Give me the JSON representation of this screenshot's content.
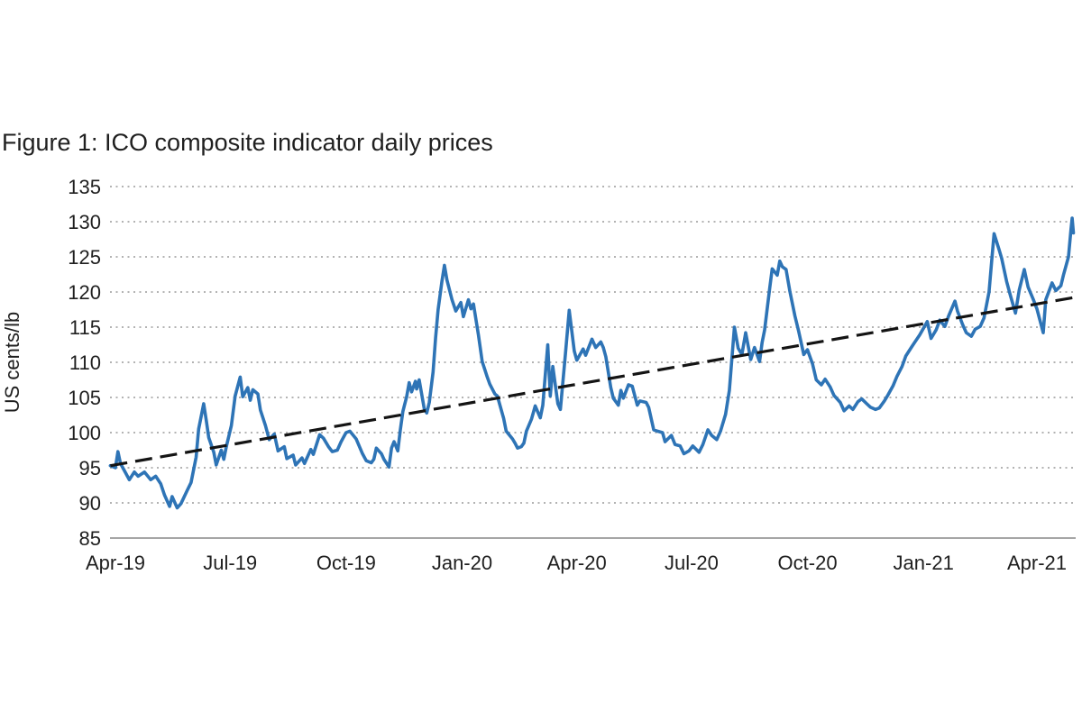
{
  "figure": {
    "title": "Figure 1: ICO composite indicator daily prices"
  },
  "chart_data": {
    "type": "line",
    "title": "Figure 1: ICO composite indicator daily prices",
    "xlabel": "",
    "ylabel": "US cents/lb",
    "ylim": [
      85,
      135
    ],
    "y_ticks": [
      85,
      90,
      95,
      100,
      105,
      110,
      115,
      120,
      125,
      130,
      135
    ],
    "x_ticks": [
      {
        "label": "Apr-19",
        "date": "2019-04-01"
      },
      {
        "label": "Jul-19",
        "date": "2019-07-01"
      },
      {
        "label": "Oct-19",
        "date": "2019-10-01"
      },
      {
        "label": "Jan-20",
        "date": "2020-01-01"
      },
      {
        "label": "Apr-20",
        "date": "2020-04-01"
      },
      {
        "label": "Jul-20",
        "date": "2020-07-01"
      },
      {
        "label": "Oct-20",
        "date": "2020-10-01"
      },
      {
        "label": "Jan-21",
        "date": "2021-01-01"
      },
      {
        "label": "Apr-21",
        "date": "2021-04-01"
      }
    ],
    "x_range": [
      "2019-03-28",
      "2021-04-30"
    ],
    "grid": "dotted-horizontal",
    "legend": "none",
    "colors": {
      "price_line": "#2E74B6",
      "trend_line": "#141414",
      "gridline": "#b3b3b3",
      "axis_line": "#a6a6a6",
      "text": "#1f1f1f"
    },
    "series": [
      {
        "name": "ICO composite indicator daily price",
        "style": "solid",
        "points": [
          [
            "2019-03-28",
            95.3
          ],
          [
            "2019-04-01",
            95.0
          ],
          [
            "2019-04-03",
            97.3
          ],
          [
            "2019-04-05",
            95.6
          ],
          [
            "2019-04-09",
            94.3
          ],
          [
            "2019-04-12",
            93.3
          ],
          [
            "2019-04-16",
            94.4
          ],
          [
            "2019-04-19",
            93.8
          ],
          [
            "2019-04-24",
            94.4
          ],
          [
            "2019-04-29",
            93.3
          ],
          [
            "2019-05-03",
            93.8
          ],
          [
            "2019-05-07",
            92.7
          ],
          [
            "2019-05-10",
            91.1
          ],
          [
            "2019-05-14",
            89.5
          ],
          [
            "2019-05-16",
            90.9
          ],
          [
            "2019-05-20",
            89.3
          ],
          [
            "2019-05-23",
            89.9
          ],
          [
            "2019-05-28",
            91.8
          ],
          [
            "2019-05-31",
            92.9
          ],
          [
            "2019-06-04",
            96.5
          ],
          [
            "2019-06-06",
            100.5
          ],
          [
            "2019-06-10",
            104.1
          ],
          [
            "2019-06-12",
            101.8
          ],
          [
            "2019-06-14",
            99.3
          ],
          [
            "2019-06-18",
            97.2
          ],
          [
            "2019-06-20",
            95.4
          ],
          [
            "2019-06-24",
            97.5
          ],
          [
            "2019-06-26",
            96.2
          ],
          [
            "2019-06-28",
            98.0
          ],
          [
            "2019-07-02",
            101.0
          ],
          [
            "2019-07-05",
            105.2
          ],
          [
            "2019-07-09",
            107.9
          ],
          [
            "2019-07-11",
            105.1
          ],
          [
            "2019-07-15",
            106.4
          ],
          [
            "2019-07-17",
            104.6
          ],
          [
            "2019-07-19",
            106.1
          ],
          [
            "2019-07-23",
            105.5
          ],
          [
            "2019-07-25",
            103.2
          ],
          [
            "2019-07-29",
            101.0
          ],
          [
            "2019-08-01",
            99.0
          ],
          [
            "2019-08-05",
            99.8
          ],
          [
            "2019-08-08",
            97.4
          ],
          [
            "2019-08-13",
            98.0
          ],
          [
            "2019-08-15",
            96.3
          ],
          [
            "2019-08-20",
            96.8
          ],
          [
            "2019-08-22",
            95.4
          ],
          [
            "2019-08-27",
            96.4
          ],
          [
            "2019-08-29",
            95.6
          ],
          [
            "2019-09-03",
            97.6
          ],
          [
            "2019-09-05",
            96.9
          ],
          [
            "2019-09-10",
            99.7
          ],
          [
            "2019-09-13",
            99.2
          ],
          [
            "2019-09-17",
            98.0
          ],
          [
            "2019-09-20",
            97.3
          ],
          [
            "2019-09-24",
            97.5
          ],
          [
            "2019-09-27",
            98.7
          ],
          [
            "2019-10-01",
            100.0
          ],
          [
            "2019-10-04",
            100.2
          ],
          [
            "2019-10-09",
            99.1
          ],
          [
            "2019-10-14",
            97.0
          ],
          [
            "2019-10-17",
            96.0
          ],
          [
            "2019-10-21",
            95.7
          ],
          [
            "2019-10-23",
            96.2
          ],
          [
            "2019-10-25",
            97.8
          ],
          [
            "2019-10-29",
            97.0
          ],
          [
            "2019-10-31",
            96.2
          ],
          [
            "2019-11-04",
            95.1
          ],
          [
            "2019-11-06",
            97.8
          ],
          [
            "2019-11-08",
            98.7
          ],
          [
            "2019-11-11",
            97.4
          ],
          [
            "2019-11-13",
            100.4
          ],
          [
            "2019-11-15",
            103.0
          ],
          [
            "2019-11-18",
            105.1
          ],
          [
            "2019-11-20",
            107.1
          ],
          [
            "2019-11-22",
            105.8
          ],
          [
            "2019-11-25",
            107.3
          ],
          [
            "2019-11-26",
            106.2
          ],
          [
            "2019-11-28",
            107.5
          ],
          [
            "2019-12-02",
            103.4
          ],
          [
            "2019-12-04",
            102.8
          ],
          [
            "2019-12-06",
            104.3
          ],
          [
            "2019-12-09",
            108.6
          ],
          [
            "2019-12-11",
            113.5
          ],
          [
            "2019-12-13",
            117.5
          ],
          [
            "2019-12-16",
            121.5
          ],
          [
            "2019-12-18",
            123.8
          ],
          [
            "2019-12-20",
            121.7
          ],
          [
            "2019-12-24",
            118.9
          ],
          [
            "2019-12-27",
            117.3
          ],
          [
            "2019-12-31",
            118.5
          ],
          [
            "2020-01-02",
            116.5
          ],
          [
            "2020-01-06",
            118.9
          ],
          [
            "2020-01-08",
            117.6
          ],
          [
            "2020-01-10",
            118.3
          ],
          [
            "2020-01-14",
            113.9
          ],
          [
            "2020-01-17",
            110.1
          ],
          [
            "2020-01-21",
            107.9
          ],
          [
            "2020-01-23",
            106.9
          ],
          [
            "2020-01-27",
            105.5
          ],
          [
            "2020-01-29",
            105.2
          ],
          [
            "2020-02-03",
            102.0
          ],
          [
            "2020-02-05",
            100.2
          ],
          [
            "2020-02-10",
            99.1
          ],
          [
            "2020-02-12",
            98.5
          ],
          [
            "2020-02-14",
            97.8
          ],
          [
            "2020-02-17",
            98.0
          ],
          [
            "2020-02-19",
            98.5
          ],
          [
            "2020-02-21",
            100.2
          ],
          [
            "2020-02-25",
            101.9
          ],
          [
            "2020-02-28",
            103.8
          ],
          [
            "2020-03-03",
            102.1
          ],
          [
            "2020-03-05",
            103.9
          ],
          [
            "2020-03-09",
            112.5
          ],
          [
            "2020-03-11",
            105.2
          ],
          [
            "2020-03-13",
            109.4
          ],
          [
            "2020-03-17",
            104.1
          ],
          [
            "2020-03-19",
            103.3
          ],
          [
            "2020-03-23",
            111.2
          ],
          [
            "2020-03-26",
            117.4
          ],
          [
            "2020-03-30",
            111.6
          ],
          [
            "2020-04-01",
            110.3
          ],
          [
            "2020-04-06",
            111.9
          ],
          [
            "2020-04-08",
            111.0
          ],
          [
            "2020-04-13",
            113.3
          ],
          [
            "2020-04-16",
            112.1
          ],
          [
            "2020-04-20",
            112.9
          ],
          [
            "2020-04-22",
            112.1
          ],
          [
            "2020-04-24",
            110.8
          ],
          [
            "2020-04-28",
            106.4
          ],
          [
            "2020-04-30",
            104.9
          ],
          [
            "2020-05-04",
            103.9
          ],
          [
            "2020-05-06",
            106.0
          ],
          [
            "2020-05-08",
            104.9
          ],
          [
            "2020-05-12",
            106.8
          ],
          [
            "2020-05-15",
            106.6
          ],
          [
            "2020-05-19",
            103.9
          ],
          [
            "2020-05-21",
            104.5
          ],
          [
            "2020-05-26",
            104.3
          ],
          [
            "2020-05-28",
            103.6
          ],
          [
            "2020-06-01",
            100.4
          ],
          [
            "2020-06-04",
            100.2
          ],
          [
            "2020-06-08",
            100.0
          ],
          [
            "2020-06-10",
            98.7
          ],
          [
            "2020-06-15",
            99.6
          ],
          [
            "2020-06-18",
            98.3
          ],
          [
            "2020-06-22",
            98.1
          ],
          [
            "2020-06-25",
            97.0
          ],
          [
            "2020-06-29",
            97.4
          ],
          [
            "2020-07-02",
            98.1
          ],
          [
            "2020-07-07",
            97.2
          ],
          [
            "2020-07-10",
            98.3
          ],
          [
            "2020-07-14",
            100.4
          ],
          [
            "2020-07-17",
            99.6
          ],
          [
            "2020-07-21",
            99.0
          ],
          [
            "2020-07-24",
            100.2
          ],
          [
            "2020-07-28",
            102.6
          ],
          [
            "2020-07-31",
            106.0
          ],
          [
            "2020-08-04",
            115.0
          ],
          [
            "2020-08-07",
            112.0
          ],
          [
            "2020-08-10",
            111.1
          ],
          [
            "2020-08-13",
            114.2
          ],
          [
            "2020-08-17",
            110.4
          ],
          [
            "2020-08-20",
            112.1
          ],
          [
            "2020-08-24",
            110.1
          ],
          [
            "2020-08-26",
            112.8
          ],
          [
            "2020-08-28",
            114.6
          ],
          [
            "2020-09-01",
            120.5
          ],
          [
            "2020-09-03",
            123.3
          ],
          [
            "2020-09-07",
            122.4
          ],
          [
            "2020-09-09",
            124.4
          ],
          [
            "2020-09-11",
            123.6
          ],
          [
            "2020-09-14",
            123.2
          ],
          [
            "2020-09-17",
            120.1
          ],
          [
            "2020-09-21",
            116.6
          ],
          [
            "2020-09-24",
            114.4
          ],
          [
            "2020-09-28",
            111.1
          ],
          [
            "2020-10-01",
            111.8
          ],
          [
            "2020-10-05",
            109.8
          ],
          [
            "2020-10-08",
            107.5
          ],
          [
            "2020-10-12",
            106.8
          ],
          [
            "2020-10-15",
            107.6
          ],
          [
            "2020-10-19",
            106.5
          ],
          [
            "2020-10-22",
            105.3
          ],
          [
            "2020-10-27",
            104.3
          ],
          [
            "2020-10-30",
            103.1
          ],
          [
            "2020-11-03",
            103.8
          ],
          [
            "2020-11-06",
            103.3
          ],
          [
            "2020-11-10",
            104.4
          ],
          [
            "2020-11-13",
            104.8
          ],
          [
            "2020-11-17",
            104.1
          ],
          [
            "2020-11-20",
            103.6
          ],
          [
            "2020-11-24",
            103.3
          ],
          [
            "2020-11-27",
            103.5
          ],
          [
            "2020-12-01",
            104.5
          ],
          [
            "2020-12-04",
            105.4
          ],
          [
            "2020-12-08",
            106.7
          ],
          [
            "2020-12-11",
            108.0
          ],
          [
            "2020-12-15",
            109.4
          ],
          [
            "2020-12-18",
            110.9
          ],
          [
            "2020-12-23",
            112.3
          ],
          [
            "2020-12-29",
            113.9
          ],
          [
            "2021-01-04",
            115.8
          ],
          [
            "2021-01-07",
            113.4
          ],
          [
            "2021-01-11",
            114.6
          ],
          [
            "2021-01-14",
            116.0
          ],
          [
            "2021-01-18",
            115.1
          ],
          [
            "2021-01-21",
            116.6
          ],
          [
            "2021-01-26",
            118.7
          ],
          [
            "2021-01-28",
            117.3
          ],
          [
            "2021-02-01",
            115.4
          ],
          [
            "2021-02-04",
            114.2
          ],
          [
            "2021-02-08",
            113.7
          ],
          [
            "2021-02-11",
            114.7
          ],
          [
            "2021-02-15",
            115.1
          ],
          [
            "2021-02-18",
            116.3
          ],
          [
            "2021-02-22",
            120.0
          ],
          [
            "2021-02-24",
            124.2
          ],
          [
            "2021-02-26",
            128.3
          ],
          [
            "2021-03-02",
            126.0
          ],
          [
            "2021-03-04",
            124.8
          ],
          [
            "2021-03-08",
            121.5
          ],
          [
            "2021-03-11",
            119.5
          ],
          [
            "2021-03-15",
            117.0
          ],
          [
            "2021-03-18",
            120.3
          ],
          [
            "2021-03-22",
            123.2
          ],
          [
            "2021-03-25",
            120.7
          ],
          [
            "2021-03-29",
            119.0
          ],
          [
            "2021-04-01",
            117.6
          ],
          [
            "2021-04-06",
            114.2
          ],
          [
            "2021-04-08",
            118.9
          ],
          [
            "2021-04-13",
            121.3
          ],
          [
            "2021-04-16",
            120.2
          ],
          [
            "2021-04-20",
            120.9
          ],
          [
            "2021-04-22",
            122.4
          ],
          [
            "2021-04-26",
            125.0
          ],
          [
            "2021-04-28",
            128.8
          ],
          [
            "2021-04-29",
            130.5
          ],
          [
            "2021-04-30",
            128.4
          ]
        ]
      },
      {
        "name": "Linear trend",
        "style": "dashed",
        "points": [
          [
            "2019-03-28",
            95.3
          ],
          [
            "2021-04-30",
            119.2
          ]
        ]
      }
    ]
  }
}
